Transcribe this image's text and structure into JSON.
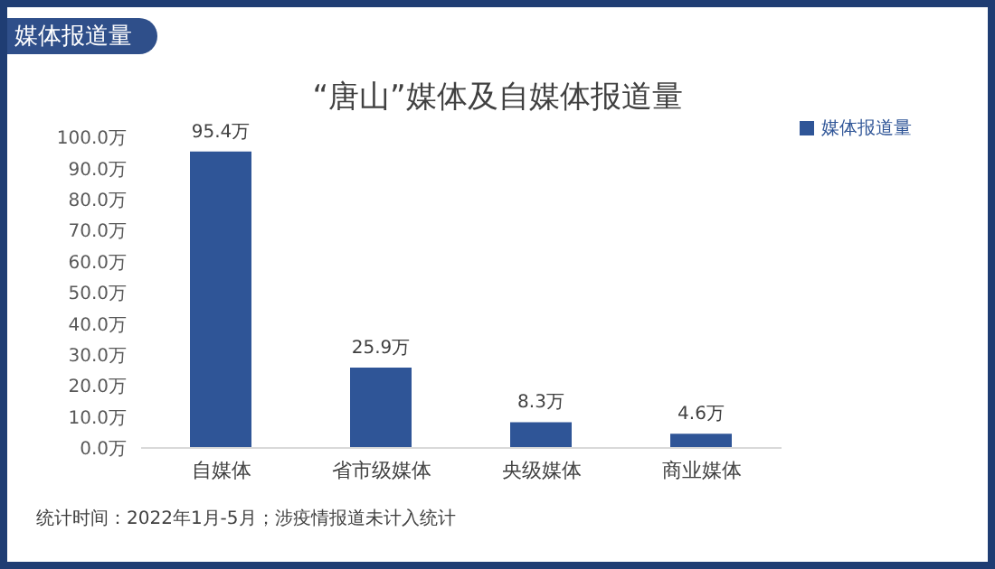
{
  "chart_data": {
    "type": "bar",
    "title": "“唐山”媒体及自媒体报道量",
    "subtitle": "媒体报道量",
    "categories": [
      "自媒体",
      "省市级媒体",
      "央级媒体",
      "商业媒体"
    ],
    "series": [
      {
        "name": "媒体报道量",
        "color": "#2f5597",
        "values": [
          95.4,
          25.9,
          8.3,
          4.6
        ],
        "value_labels": [
          "95.4万",
          "25.9万",
          "8.3万",
          "4.6万"
        ]
      }
    ],
    "ylim": [
      0,
      100
    ],
    "yticks": [
      {
        "value": 0,
        "label": "0.0万"
      },
      {
        "value": 10,
        "label": "10.0万"
      },
      {
        "value": 20,
        "label": "20.0万"
      },
      {
        "value": 30,
        "label": "30.0万"
      },
      {
        "value": 40,
        "label": "40.0万"
      },
      {
        "value": 50,
        "label": "50.0万"
      },
      {
        "value": 60,
        "label": "60.0万"
      },
      {
        "value": 70,
        "label": "70.0万"
      },
      {
        "value": 80,
        "label": "80.0万"
      },
      {
        "value": 90,
        "label": "90.0万"
      },
      {
        "value": 100,
        "label": "100.0万"
      }
    ],
    "grid": false,
    "legend": "top right",
    "annotations": [
      "统计时间：2022年1月-5月；涉疫情报道未计入统计"
    ]
  }
}
